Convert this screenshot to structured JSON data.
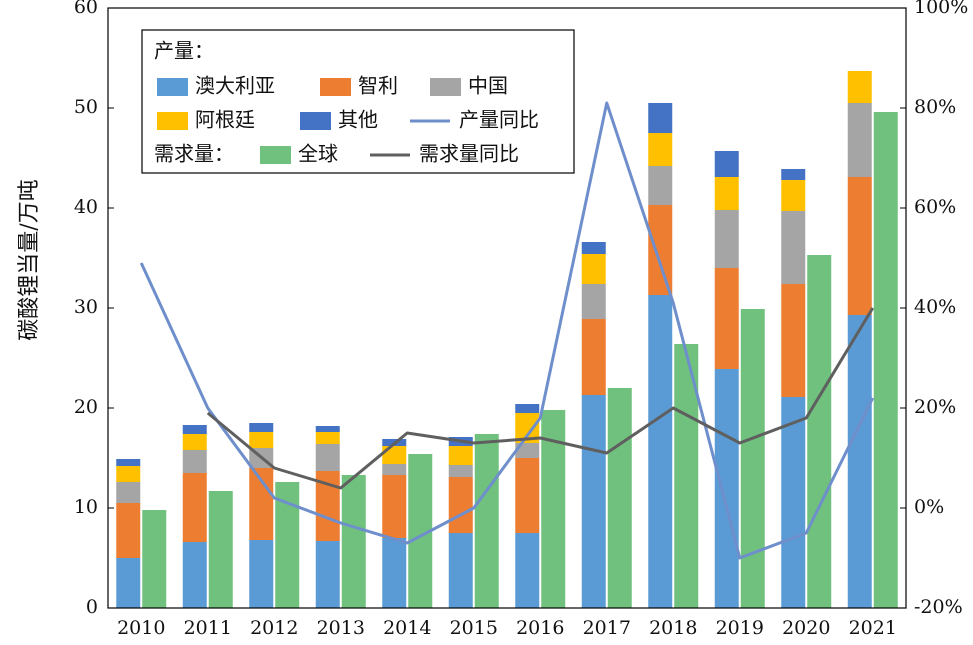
{
  "chart_data": {
    "type": "bar",
    "categories": [
      "2010",
      "2011",
      "2012",
      "2013",
      "2014",
      "2015",
      "2016",
      "2017",
      "2018",
      "2019",
      "2020",
      "2021"
    ],
    "stacked_series": [
      {
        "name": "澳大利亚",
        "color": "#5B9BD5",
        "values": [
          5.0,
          6.6,
          6.8,
          6.7,
          7.0,
          7.5,
          7.5,
          21.3,
          31.3,
          23.9,
          21.1,
          29.3
        ]
      },
      {
        "name": "智利",
        "color": "#ED7D31",
        "values": [
          5.5,
          6.9,
          7.2,
          7.0,
          6.3,
          5.6,
          7.5,
          7.6,
          9.0,
          10.1,
          11.3,
          13.8
        ]
      },
      {
        "name": "中国",
        "color": "#A5A5A5",
        "values": [
          2.1,
          2.3,
          2.0,
          2.7,
          1.1,
          1.2,
          1.5,
          3.5,
          3.9,
          5.8,
          7.3,
          7.4
        ]
      },
      {
        "name": "阿根廷",
        "color": "#FFC000",
        "values": [
          1.6,
          1.6,
          1.6,
          1.2,
          1.8,
          1.9,
          3.0,
          3.0,
          3.3,
          3.3,
          3.1,
          3.2
        ]
      },
      {
        "name": "其他",
        "color": "#4472C4",
        "values": [
          0.7,
          0.9,
          0.9,
          0.6,
          0.7,
          0.9,
          0.9,
          1.2,
          3.0,
          2.6,
          1.1,
          0.0
        ]
      }
    ],
    "demand_series": {
      "name": "全球",
      "color": "#70C17E",
      "values": [
        9.8,
        11.7,
        12.6,
        13.3,
        15.4,
        17.4,
        19.8,
        22.0,
        26.4,
        29.9,
        35.3,
        49.6
      ]
    },
    "line_series": [
      {
        "name": "产量同比",
        "color": "#6E8FCB",
        "values": [
          49,
          20,
          2,
          -3,
          -7,
          0,
          18,
          81,
          41,
          -10,
          -5,
          22
        ]
      },
      {
        "name": "需求量同比",
        "color": "#5F5F5F",
        "values": [
          null,
          19,
          8,
          4,
          15,
          13,
          14,
          11,
          20,
          13,
          18,
          40
        ]
      }
    ],
    "legend": {
      "production_label": "产量：",
      "demand_label": "需求量：",
      "placement": "top-left"
    },
    "ylabel": "碳酸锂当量/万吨",
    "ylim": [
      0,
      60
    ],
    "yticks": [
      "0",
      "10",
      "20",
      "30",
      "40",
      "50",
      "60"
    ],
    "y2lim": [
      -20,
      100
    ],
    "y2ticks": [
      "-20%",
      "0%",
      "20%",
      "40%",
      "60%",
      "80%",
      "100%"
    ],
    "grid": false
  }
}
